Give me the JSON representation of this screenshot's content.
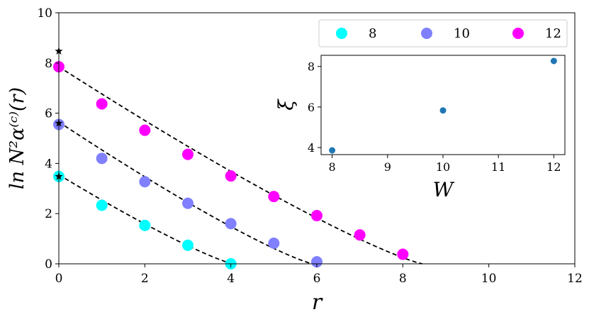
{
  "chart_data": [
    {
      "type": "scatter",
      "title": "",
      "xlabel": "r",
      "ylabel": "ln N²α⁽ᶜ⁾(r)",
      "xlim": [
        0,
        12
      ],
      "ylim": [
        0,
        10
      ],
      "xticks": [
        0,
        2,
        4,
        6,
        8,
        10,
        12
      ],
      "yticks": [
        0,
        2,
        4,
        6,
        8,
        10
      ],
      "legend_position": "top-right",
      "series": [
        {
          "name": "8",
          "color": "#00ffff",
          "x": [
            0,
            1,
            2,
            3,
            4
          ],
          "y": [
            3.48,
            2.33,
            1.53,
            0.74,
            0.0
          ],
          "star_y": 3.48,
          "fit": {
            "y0": 3.55,
            "xzero": 4.05
          }
        },
        {
          "name": "10",
          "color": "#8080ff",
          "x": [
            0,
            1,
            2,
            3,
            4,
            5,
            6
          ],
          "y": [
            5.55,
            4.2,
            3.27,
            2.41,
            1.6,
            0.82,
            0.08
          ],
          "star_y": 5.6,
          "fit": {
            "y0": 5.65,
            "xzero": 5.9
          }
        },
        {
          "name": "12",
          "color": "#ff00ff",
          "x": [
            0,
            1,
            2,
            3,
            4,
            5,
            6,
            7,
            8
          ],
          "y": [
            7.85,
            6.37,
            5.32,
            4.36,
            3.5,
            2.68,
            1.92,
            1.15,
            0.38
          ],
          "star_y": 8.47,
          "fit": {
            "y0": 7.85,
            "xzero": 8.45
          }
        }
      ]
    },
    {
      "type": "scatter",
      "title": "",
      "xlabel": "W",
      "ylabel": "ξ",
      "xlim": [
        7.8,
        12.2
      ],
      "ylim": [
        3.65,
        8.55
      ],
      "xticks": [
        8,
        9,
        10,
        11,
        12
      ],
      "yticks": [
        4,
        6,
        8
      ],
      "color": "#1f77b4",
      "x": [
        8,
        10,
        12
      ],
      "y": [
        3.86,
        5.83,
        8.27
      ]
    }
  ]
}
